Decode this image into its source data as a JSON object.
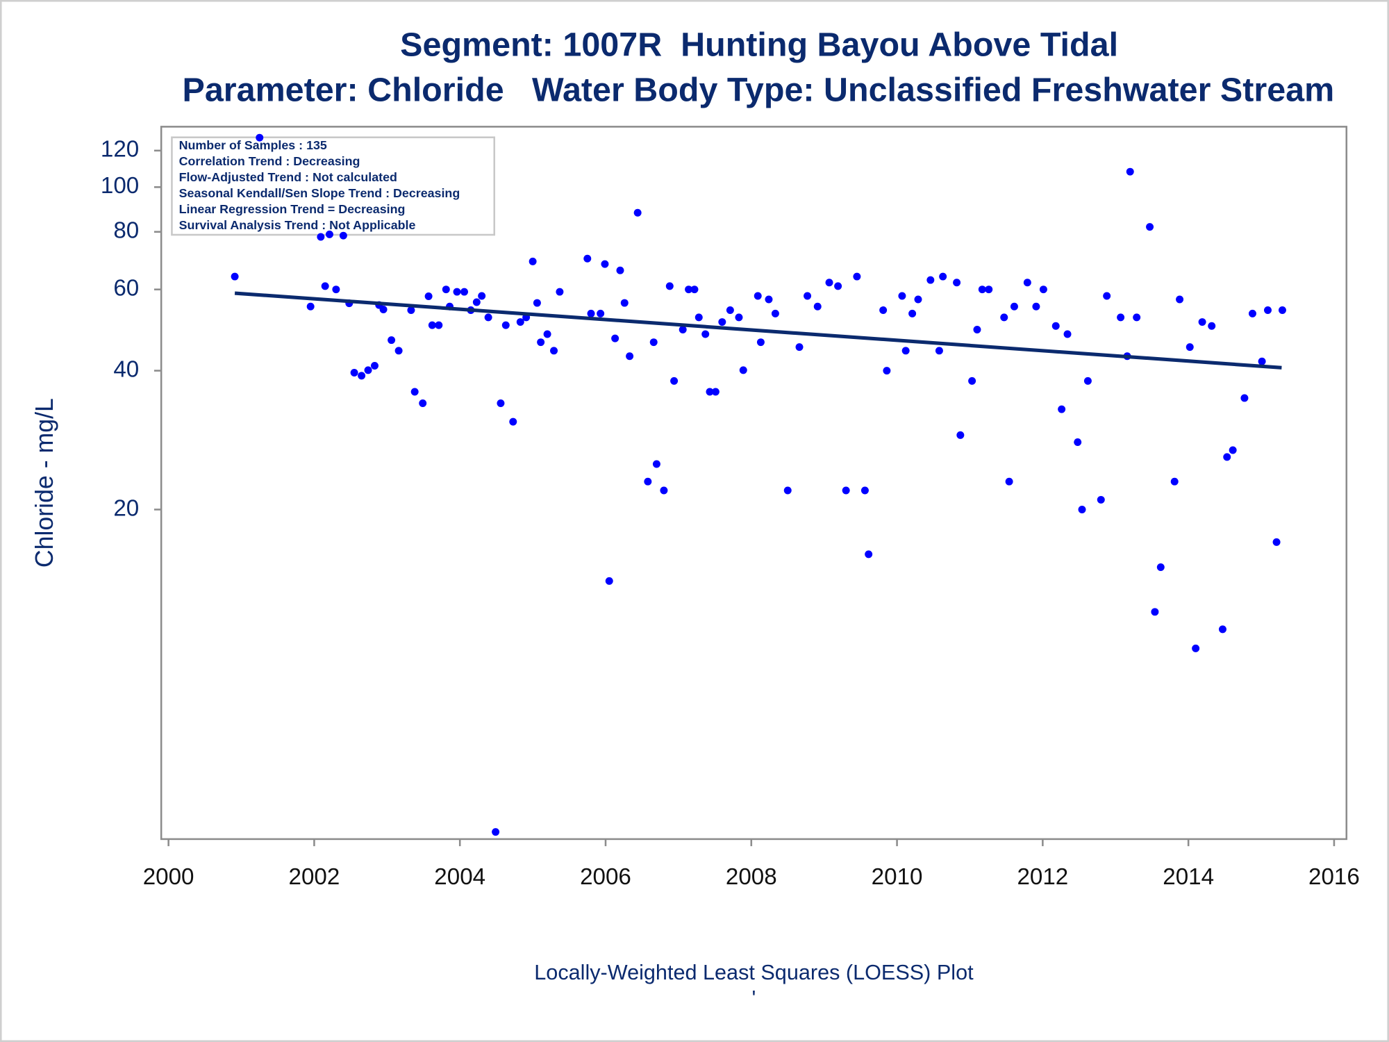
{
  "chart_data": {
    "type": "scatter",
    "title": "Segment: 1007R  Hunting Bayou Above Tidal",
    "subtitle": "Parameter: Chloride   Water Body Type: Unclassified Freshwater Stream",
    "y_label": "Chloride - mg/L",
    "x_label": "Locally-Weighted Least Squares (LOESS) Plot",
    "footnote": "'",
    "annotations": [
      "Number of Samples : 135",
      "Correlation Trend : Decreasing",
      "Flow-Adjusted Trend : Not calculated",
      "Seasonal Kendall/Sen Slope Trend : Decreasing",
      "Linear Regression Trend = Decreasing",
      "Survival Analysis Trend : Not Applicable"
    ],
    "log_y": true,
    "xlim": [
      1999.9,
      2016.17
    ],
    "ylim": [
      3.86,
      135.2
    ],
    "xticks": [
      2000,
      2002,
      2004,
      2006,
      2008,
      2010,
      2012,
      2014,
      2016
    ],
    "yticks": [
      20,
      40,
      60,
      80,
      100,
      120
    ],
    "color": "#0000ff",
    "x": [
      2000.91,
      2001.25,
      2001.95,
      2002.09,
      2002.15,
      2002.21,
      2002.3,
      2002.4,
      2002.48,
      2002.55,
      2002.65,
      2002.74,
      2002.83,
      2002.89,
      2002.95,
      2003.06,
      2003.16,
      2003.33,
      2003.38,
      2003.49,
      2003.57,
      2003.62,
      2003.71,
      2003.81,
      2003.86,
      2003.96,
      2004.06,
      2004.15,
      2004.23,
      2004.3,
      2004.39,
      2004.49,
      2004.56,
      2004.63,
      2004.73,
      2004.83,
      2004.91,
      2005.0,
      2005.06,
      2005.11,
      2005.2,
      2005.29,
      2005.37,
      2005.75,
      2005.8,
      2005.93,
      2005.99,
      2006.05,
      2006.13,
      2006.2,
      2006.26,
      2006.33,
      2006.44,
      2006.58,
      2006.66,
      2006.7,
      2006.8,
      2006.88,
      2006.94,
      2007.06,
      2007.14,
      2007.22,
      2007.28,
      2007.37,
      2007.43,
      2007.51,
      2007.6,
      2007.71,
      2007.83,
      2007.89,
      2008.09,
      2008.13,
      2008.24,
      2008.33,
      2008.5,
      2008.66,
      2008.77,
      2008.91,
      2009.07,
      2009.19,
      2009.3,
      2009.45,
      2009.56,
      2009.61,
      2009.81,
      2009.86,
      2010.07,
      2010.12,
      2010.21,
      2010.29,
      2010.46,
      2010.58,
      2010.63,
      2010.82,
      2010.87,
      2011.03,
      2011.1,
      2011.17,
      2011.26,
      2011.47,
      2011.54,
      2011.61,
      2011.79,
      2011.91,
      2012.01,
      2012.18,
      2012.26,
      2012.34,
      2012.48,
      2012.54,
      2012.62,
      2012.8,
      2012.88,
      2013.07,
      2013.16,
      2013.2,
      2013.29,
      2013.47,
      2013.54,
      2013.62,
      2013.81,
      2013.88,
      2014.02,
      2014.1,
      2014.19,
      2014.32,
      2014.47,
      2014.53,
      2014.61,
      2014.77,
      2014.88,
      2015.01,
      2015.09,
      2015.21,
      2015.29
    ],
    "values": [
      64,
      128,
      55.1,
      78,
      61,
      79,
      60,
      78.5,
      56,
      39.6,
      39,
      40.1,
      41,
      55.5,
      54.3,
      46.6,
      44.2,
      54.1,
      36,
      34,
      58,
      50.2,
      50.2,
      60,
      55.1,
      59.3,
      59.3,
      54.1,
      56.3,
      58.1,
      52.2,
      4.0,
      34,
      50.2,
      31,
      51,
      52.2,
      69,
      56.1,
      46.1,
      48,
      44.2,
      59.3,
      70,
      53.2,
      53.2,
      68.1,
      14,
      47,
      66,
      56.1,
      43,
      88,
      23,
      46.1,
      25.1,
      22,
      61,
      38,
      49.1,
      60,
      60,
      52.2,
      48,
      36,
      36,
      51,
      54.1,
      52.2,
      40.1,
      58.1,
      46.1,
      57.1,
      53.2,
      22,
      45,
      58.1,
      55.1,
      62.1,
      61,
      22,
      64,
      22,
      16,
      54.1,
      40,
      58.1,
      44.2,
      53.2,
      57.1,
      62.9,
      44.2,
      64,
      62.1,
      29,
      38,
      49.1,
      60,
      60,
      52.2,
      23,
      55.1,
      62.1,
      55.1,
      60,
      50,
      33,
      48,
      28,
      20,
      38,
      21,
      58.1,
      52.2,
      43,
      108,
      52.2,
      82,
      12,
      15,
      23,
      57.1,
      45,
      10,
      51,
      50,
      11,
      26,
      26.9,
      34.9,
      53.2,
      41.9,
      54.1,
      17,
      54.1
    ],
    "trend": {
      "color": "#0b2a6e",
      "x": [
        2000.91,
        2015.28
      ],
      "values": [
        58.9,
        40.6
      ]
    }
  }
}
